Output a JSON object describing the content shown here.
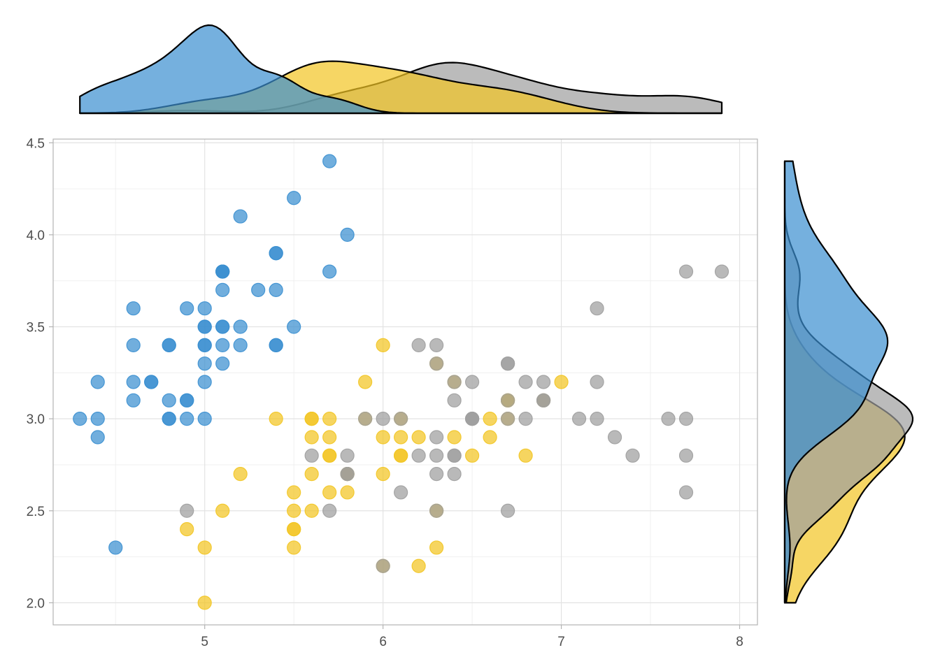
{
  "chart_data": {
    "type": "scatter",
    "title": "",
    "xlabel": "",
    "ylabel": "",
    "xlim": [
      4.15,
      8.1
    ],
    "ylim": [
      1.88,
      4.52
    ],
    "x_ticks": [
      5,
      6,
      7,
      8
    ],
    "y_ticks": [
      2.0,
      2.5,
      3.0,
      3.5,
      4.0,
      4.5
    ],
    "x_tick_labels": [
      "5",
      "6",
      "7",
      "8"
    ],
    "y_tick_labels": [
      "2.0",
      "2.5",
      "3.0",
      "3.5",
      "4.0",
      "4.5"
    ],
    "grid": true,
    "legend": "none",
    "marginal_densities": {
      "top": "x",
      "right": "y"
    },
    "series": [
      {
        "color": "#3a8fd0",
        "points": [
          [
            5.1,
            3.5
          ],
          [
            4.9,
            3.0
          ],
          [
            4.7,
            3.2
          ],
          [
            4.6,
            3.1
          ],
          [
            5.0,
            3.6
          ],
          [
            5.4,
            3.9
          ],
          [
            4.6,
            3.4
          ],
          [
            5.0,
            3.4
          ],
          [
            4.4,
            2.9
          ],
          [
            4.9,
            3.1
          ],
          [
            5.4,
            3.7
          ],
          [
            4.8,
            3.4
          ],
          [
            4.8,
            3.0
          ],
          [
            4.3,
            3.0
          ],
          [
            5.8,
            4.0
          ],
          [
            5.7,
            4.4
          ],
          [
            5.4,
            3.9
          ],
          [
            5.1,
            3.5
          ],
          [
            5.7,
            3.8
          ],
          [
            5.1,
            3.8
          ],
          [
            5.4,
            3.4
          ],
          [
            5.1,
            3.7
          ],
          [
            4.6,
            3.6
          ],
          [
            5.1,
            3.3
          ],
          [
            4.8,
            3.4
          ],
          [
            5.0,
            3.0
          ],
          [
            5.0,
            3.4
          ],
          [
            5.2,
            3.5
          ],
          [
            5.2,
            3.4
          ],
          [
            4.7,
            3.2
          ],
          [
            4.8,
            3.1
          ],
          [
            5.4,
            3.4
          ],
          [
            5.2,
            4.1
          ],
          [
            5.5,
            4.2
          ],
          [
            4.9,
            3.1
          ],
          [
            5.0,
            3.2
          ],
          [
            5.5,
            3.5
          ],
          [
            4.9,
            3.6
          ],
          [
            4.4,
            3.0
          ],
          [
            5.1,
            3.4
          ],
          [
            5.0,
            3.5
          ],
          [
            4.5,
            2.3
          ],
          [
            4.4,
            3.2
          ],
          [
            5.0,
            3.5
          ],
          [
            5.1,
            3.8
          ],
          [
            4.8,
            3.0
          ],
          [
            5.1,
            3.8
          ],
          [
            4.6,
            3.2
          ],
          [
            5.3,
            3.7
          ],
          [
            5.0,
            3.3
          ]
        ]
      },
      {
        "color": "#f2c522",
        "points": [
          [
            7.0,
            3.2
          ],
          [
            6.4,
            3.2
          ],
          [
            6.9,
            3.1
          ],
          [
            5.5,
            2.3
          ],
          [
            6.5,
            2.8
          ],
          [
            5.7,
            2.8
          ],
          [
            6.3,
            3.3
          ],
          [
            4.9,
            2.4
          ],
          [
            6.6,
            2.9
          ],
          [
            5.2,
            2.7
          ],
          [
            5.0,
            2.0
          ],
          [
            5.9,
            3.0
          ],
          [
            6.0,
            2.2
          ],
          [
            6.1,
            2.9
          ],
          [
            5.6,
            2.9
          ],
          [
            6.7,
            3.1
          ],
          [
            5.6,
            3.0
          ],
          [
            5.8,
            2.7
          ],
          [
            6.2,
            2.2
          ],
          [
            5.6,
            2.5
          ],
          [
            5.9,
            3.2
          ],
          [
            6.1,
            2.8
          ],
          [
            6.3,
            2.5
          ],
          [
            6.1,
            2.8
          ],
          [
            6.4,
            2.9
          ],
          [
            6.6,
            3.0
          ],
          [
            6.8,
            2.8
          ],
          [
            6.7,
            3.0
          ],
          [
            6.0,
            2.9
          ],
          [
            5.7,
            2.6
          ],
          [
            5.5,
            2.4
          ],
          [
            5.5,
            2.4
          ],
          [
            5.8,
            2.7
          ],
          [
            6.0,
            2.7
          ],
          [
            5.4,
            3.0
          ],
          [
            6.0,
            3.4
          ],
          [
            6.7,
            3.1
          ],
          [
            6.3,
            2.3
          ],
          [
            5.6,
            3.0
          ],
          [
            5.5,
            2.5
          ],
          [
            5.5,
            2.6
          ],
          [
            6.1,
            3.0
          ],
          [
            5.8,
            2.6
          ],
          [
            5.0,
            2.3
          ],
          [
            5.6,
            2.7
          ],
          [
            5.7,
            3.0
          ],
          [
            5.7,
            2.9
          ],
          [
            6.2,
            2.9
          ],
          [
            5.1,
            2.5
          ],
          [
            5.7,
            2.8
          ]
        ]
      },
      {
        "color": "#9e9e9e",
        "points": [
          [
            6.3,
            3.3
          ],
          [
            5.8,
            2.7
          ],
          [
            7.1,
            3.0
          ],
          [
            6.3,
            2.9
          ],
          [
            6.5,
            3.0
          ],
          [
            7.6,
            3.0
          ],
          [
            4.9,
            2.5
          ],
          [
            7.3,
            2.9
          ],
          [
            6.7,
            2.5
          ],
          [
            7.2,
            3.6
          ],
          [
            6.5,
            3.2
          ],
          [
            6.4,
            2.7
          ],
          [
            6.8,
            3.0
          ],
          [
            5.7,
            2.5
          ],
          [
            5.8,
            2.8
          ],
          [
            6.4,
            3.2
          ],
          [
            6.5,
            3.0
          ],
          [
            7.7,
            3.8
          ],
          [
            7.7,
            2.6
          ],
          [
            6.0,
            2.2
          ],
          [
            6.9,
            3.2
          ],
          [
            5.6,
            2.8
          ],
          [
            7.7,
            2.8
          ],
          [
            6.3,
            2.7
          ],
          [
            6.7,
            3.3
          ],
          [
            7.2,
            3.2
          ],
          [
            6.2,
            2.8
          ],
          [
            6.1,
            3.0
          ],
          [
            6.4,
            2.8
          ],
          [
            7.2,
            3.0
          ],
          [
            7.4,
            2.8
          ],
          [
            7.9,
            3.8
          ],
          [
            6.4,
            2.8
          ],
          [
            6.3,
            2.8
          ],
          [
            6.1,
            2.6
          ],
          [
            7.7,
            3.0
          ],
          [
            6.3,
            3.4
          ],
          [
            6.4,
            3.1
          ],
          [
            6.0,
            3.0
          ],
          [
            6.9,
            3.1
          ],
          [
            6.7,
            3.1
          ],
          [
            6.9,
            3.1
          ],
          [
            5.8,
            2.7
          ],
          [
            6.8,
            3.2
          ],
          [
            6.7,
            3.3
          ],
          [
            6.7,
            3.0
          ],
          [
            6.3,
            2.5
          ],
          [
            6.5,
            3.0
          ],
          [
            6.2,
            3.4
          ],
          [
            5.9,
            3.0
          ]
        ]
      }
    ]
  }
}
